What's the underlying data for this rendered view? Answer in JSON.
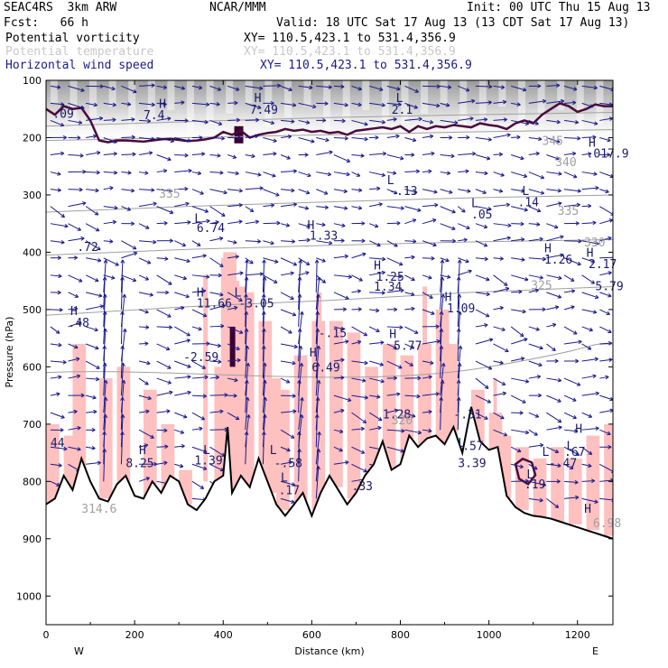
{
  "header": {
    "model": "SEAC4RS  3km ARW",
    "org": "NCAR/MMM",
    "init": "Init: 00 UTC Thu 15 Aug 13",
    "fcst": "Fcst:   66 h",
    "valid": "Valid: 18 UTC Sat 17 Aug 13 (13 CDT Sat 17 Aug 13)"
  },
  "legend": [
    {
      "name": "Potential vorticity",
      "xy": "XY= 110.5,423.1 to 531.4,356.9",
      "color": "#000000"
    },
    {
      "name": "Potential temperature",
      "xy": "XY= 110.5,423.1 to 531.4,356.9",
      "color": "#c8c8c8"
    },
    {
      "name": "Horizontal wind speed",
      "xy": "XY= 110.5,423.1 to 531.4,356.9",
      "color": "#1a1a8c"
    }
  ],
  "colors": {
    "pv_fill": "#ffc0c0",
    "pv_contour": "#4a0a3a",
    "theta": "#a0a0a0",
    "wind": "#1a1a8c",
    "terrain": "#000000"
  },
  "chart_data": {
    "type": "cross-section",
    "xlabel": "Distance (km)",
    "ylabel": "Pressure (hPa)",
    "xlim": [
      0,
      1280
    ],
    "ylim": [
      1050,
      100
    ],
    "x_ticks": [
      "0",
      "200",
      "400",
      "600",
      "800",
      "1000",
      "1200"
    ],
    "y_ticks": [
      "100",
      "200",
      "300",
      "400",
      "500",
      "600",
      "700",
      "800",
      "900",
      "1000"
    ],
    "end_labels": {
      "left": "W",
      "right": "E"
    },
    "theta_contours": [
      {
        "label": "345",
        "p": [
          180,
          172,
          165,
          160,
          156
        ]
      },
      {
        "label": "340",
        "p": [
          205,
          200,
          195,
          190,
          186
        ]
      },
      {
        "label": "335",
        "p": [
          330,
          320,
          312,
          305,
          300
        ]
      },
      {
        "label": "330",
        "p": [
          405,
          395,
          388,
          382,
          378
        ]
      },
      {
        "label": "325",
        "p": [
          510,
          495,
          484,
          470,
          460
        ]
      }
    ],
    "theta_labels": [
      {
        "text": "345",
        "x": 1120,
        "p": 213
      },
      {
        "text": "340",
        "x": 1150,
        "p": 250
      },
      {
        "text": "335",
        "x": 255,
        "p": 305
      },
      {
        "text": "335",
        "x": 1155,
        "p": 335
      },
      {
        "text": "330",
        "x": 1215,
        "p": 390
      },
      {
        "text": "325",
        "x": 1095,
        "p": 465
      },
      {
        "text": "320",
        "x": 780,
        "p": 700
      },
      {
        "text": "314.6",
        "x": 80,
        "p": 855
      },
      {
        "text": "6.98",
        "x": 1235,
        "p": 880
      }
    ],
    "extrema_labels": [
      {
        "text": "H",
        "x": 255,
        "p": 148
      },
      {
        "text": "7.4",
        "x": 220,
        "p": 168
      },
      {
        "text": "H",
        "x": 470,
        "p": 138
      },
      {
        "text": "7.49",
        "x": 460,
        "p": 158
      },
      {
        "text": "L",
        "x": 790,
        "p": 138
      },
      {
        "text": "2.1",
        "x": 780,
        "p": 158
      },
      {
        "text": ".09",
        "x": 15,
        "p": 165
      },
      {
        "text": "L",
        "x": 770,
        "p": 281
      },
      {
        "text": "-.13",
        "x": 775,
        "p": 300
      },
      {
        "text": "H",
        "x": 1225,
        "p": 216
      },
      {
        "text": ".017.9",
        "x": 1220,
        "p": 235
      },
      {
        "text": "L",
        "x": 1075,
        "p": 300
      },
      {
        "text": ".14",
        "x": 1065,
        "p": 320
      },
      {
        "text": "L",
        "x": 960,
        "p": 321
      },
      {
        "text": ".05",
        "x": 960,
        "p": 341
      },
      {
        "text": "L",
        "x": 335,
        "p": 348
      },
      {
        "text": "6.74",
        "x": 340,
        "p": 365
      },
      {
        "text": "H",
        "x": 590,
        "p": 360
      },
      {
        "text": "1.33",
        "x": 595,
        "p": 378
      },
      {
        "text": ".72",
        "x": 70,
        "p": 398
      },
      {
        "text": "H",
        "x": 1125,
        "p": 400
      },
      {
        "text": "1.26",
        "x": 1125,
        "p": 420
      },
      {
        "text": "H",
        "x": 1220,
        "p": 408
      },
      {
        "text": "2.17",
        "x": 1225,
        "p": 428
      },
      {
        "text": "5.79",
        "x": 1240,
        "p": 466
      },
      {
        "text": "H",
        "x": 740,
        "p": 430
      },
      {
        "text": "1.25",
        "x": 745,
        "p": 450
      },
      {
        "text": "1.34",
        "x": 740,
        "p": 467
      },
      {
        "text": "H",
        "x": 340,
        "p": 477
      },
      {
        "text": "11.66",
        "x": 340,
        "p": 496
      },
      {
        "text": "L",
        "x": 425,
        "p": 477
      },
      {
        "text": "-3.05",
        "x": 435,
        "p": 496
      },
      {
        "text": "H",
        "x": 900,
        "p": 485
      },
      {
        "text": "1.09",
        "x": 905,
        "p": 505
      },
      {
        "text": "H",
        "x": 55,
        "p": 510
      },
      {
        "text": ".48",
        "x": 50,
        "p": 530
      },
      {
        "text": "-.15",
        "x": 615,
        "p": 548
      },
      {
        "text": "H",
        "x": 775,
        "p": 550
      },
      {
        "text": "5.77",
        "x": 785,
        "p": 570
      },
      {
        "text": "H",
        "x": 595,
        "p": 582
      },
      {
        "text": "6.49",
        "x": 600,
        "p": 608
      },
      {
        "text": "-2.59",
        "x": 310,
        "p": 590
      },
      {
        "text": "1.28",
        "x": 760,
        "p": 690
      },
      {
        "text": "-.31",
        "x": 920,
        "p": 690
      },
      {
        "text": "H",
        "x": 1195,
        "p": 715
      },
      {
        "text": "L",
        "x": 1175,
        "p": 745
      },
      {
        "text": ".67",
        "x": 1170,
        "p": 755
      },
      {
        "text": "L",
        "x": 1120,
        "p": 755
      },
      {
        "text": "-.47",
        "x": 1135,
        "p": 775
      },
      {
        "text": "H",
        "x": 210,
        "p": 752
      },
      {
        "text": "8.25",
        "x": 180,
        "p": 775
      },
      {
        "text": "L",
        "x": 355,
        "p": 752
      },
      {
        "text": "1.39",
        "x": 335,
        "p": 770
      },
      {
        "text": "L",
        "x": 505,
        "p": 752
      },
      {
        "text": "-.58",
        "x": 515,
        "p": 775
      },
      {
        "text": "L",
        "x": 530,
        "p": 800
      },
      {
        "text": ".17",
        "x": 525,
        "p": 822
      },
      {
        "text": "L",
        "x": 930,
        "p": 740
      },
      {
        "text": ".57",
        "x": 940,
        "p": 745
      },
      {
        "text": "3.39",
        "x": 930,
        "p": 775
      },
      {
        "text": ".33",
        "x": 690,
        "p": 815
      },
      {
        "text": "L",
        "x": 1085,
        "p": 795
      },
      {
        "text": ".19",
        "x": 1080,
        "p": 812
      },
      {
        "text": "H",
        "x": 1215,
        "p": 855
      },
      {
        "text": "44",
        "x": 10,
        "p": 740
      }
    ],
    "terrain": {
      "x": [
        0,
        20,
        40,
        60,
        80,
        100,
        120,
        140,
        160,
        180,
        200,
        220,
        240,
        260,
        280,
        300,
        320,
        340,
        360,
        380,
        400,
        410,
        420,
        440,
        460,
        480,
        500,
        520,
        540,
        560,
        580,
        600,
        620,
        640,
        660,
        680,
        700,
        720,
        740,
        760,
        780,
        800,
        820,
        840,
        860,
        880,
        900,
        920,
        940,
        960,
        980,
        1000,
        1020,
        1040,
        1060,
        1080,
        1100,
        1120,
        1140,
        1160,
        1180,
        1200,
        1220,
        1240,
        1260,
        1280
      ],
      "p": [
        840,
        830,
        790,
        815,
        760,
        800,
        830,
        835,
        805,
        790,
        825,
        830,
        800,
        820,
        790,
        800,
        840,
        850,
        830,
        800,
        790,
        705,
        820,
        790,
        810,
        760,
        800,
        840,
        860,
        840,
        820,
        860,
        820,
        790,
        815,
        840,
        820,
        790,
        770,
        730,
        780,
        770,
        720,
        740,
        725,
        720,
        735,
        705,
        750,
        670,
        730,
        745,
        740,
        825,
        845,
        855,
        860,
        862,
        865,
        870,
        875,
        880,
        885,
        890,
        895,
        900
      ]
    },
    "pv_contour_stratosphere": [
      {
        "x": [
          0,
          20,
          40,
          60,
          80,
          100,
          120,
          140,
          160,
          180,
          200,
          220,
          240,
          260,
          280,
          300,
          320,
          340,
          360,
          380,
          400,
          420,
          440,
          460,
          480,
          500,
          520,
          540,
          560,
          580,
          600,
          620,
          640,
          660,
          680,
          700,
          720,
          740,
          760,
          780,
          800,
          820,
          840,
          860,
          880,
          900,
          920,
          940,
          960,
          980,
          1000,
          1020,
          1040,
          1060,
          1080,
          1100,
          1120,
          1140,
          1160,
          1180,
          1200,
          1220,
          1240,
          1260,
          1280
        ],
        "p": [
          150,
          160,
          145,
          150,
          148,
          170,
          205,
          208,
          205,
          205,
          206,
          207,
          205,
          203,
          202,
          204,
          206,
          205,
          203,
          200,
          190,
          195,
          188,
          200,
          195,
          192,
          190,
          185,
          188,
          186,
          190,
          188,
          192,
          190,
          195,
          188,
          186,
          184,
          182,
          185,
          180,
          190,
          180,
          185,
          180,
          182,
          178,
          180,
          182,
          175,
          178,
          180,
          185,
          175,
          170,
          175,
          160,
          150,
          140,
          145,
          155,
          150,
          142,
          145,
          145
        ]
      }
    ],
    "wind_grid": {
      "x_step_km": 40,
      "p_levels": [
        110,
        140,
        170,
        200,
        230,
        260,
        290,
        320,
        350,
        380,
        410,
        440,
        470,
        500,
        530,
        560,
        590,
        620,
        650,
        680,
        710,
        740,
        770,
        800,
        830
      ],
      "dir_note": "in-plane arrows, u horizontal, w vertical"
    }
  }
}
